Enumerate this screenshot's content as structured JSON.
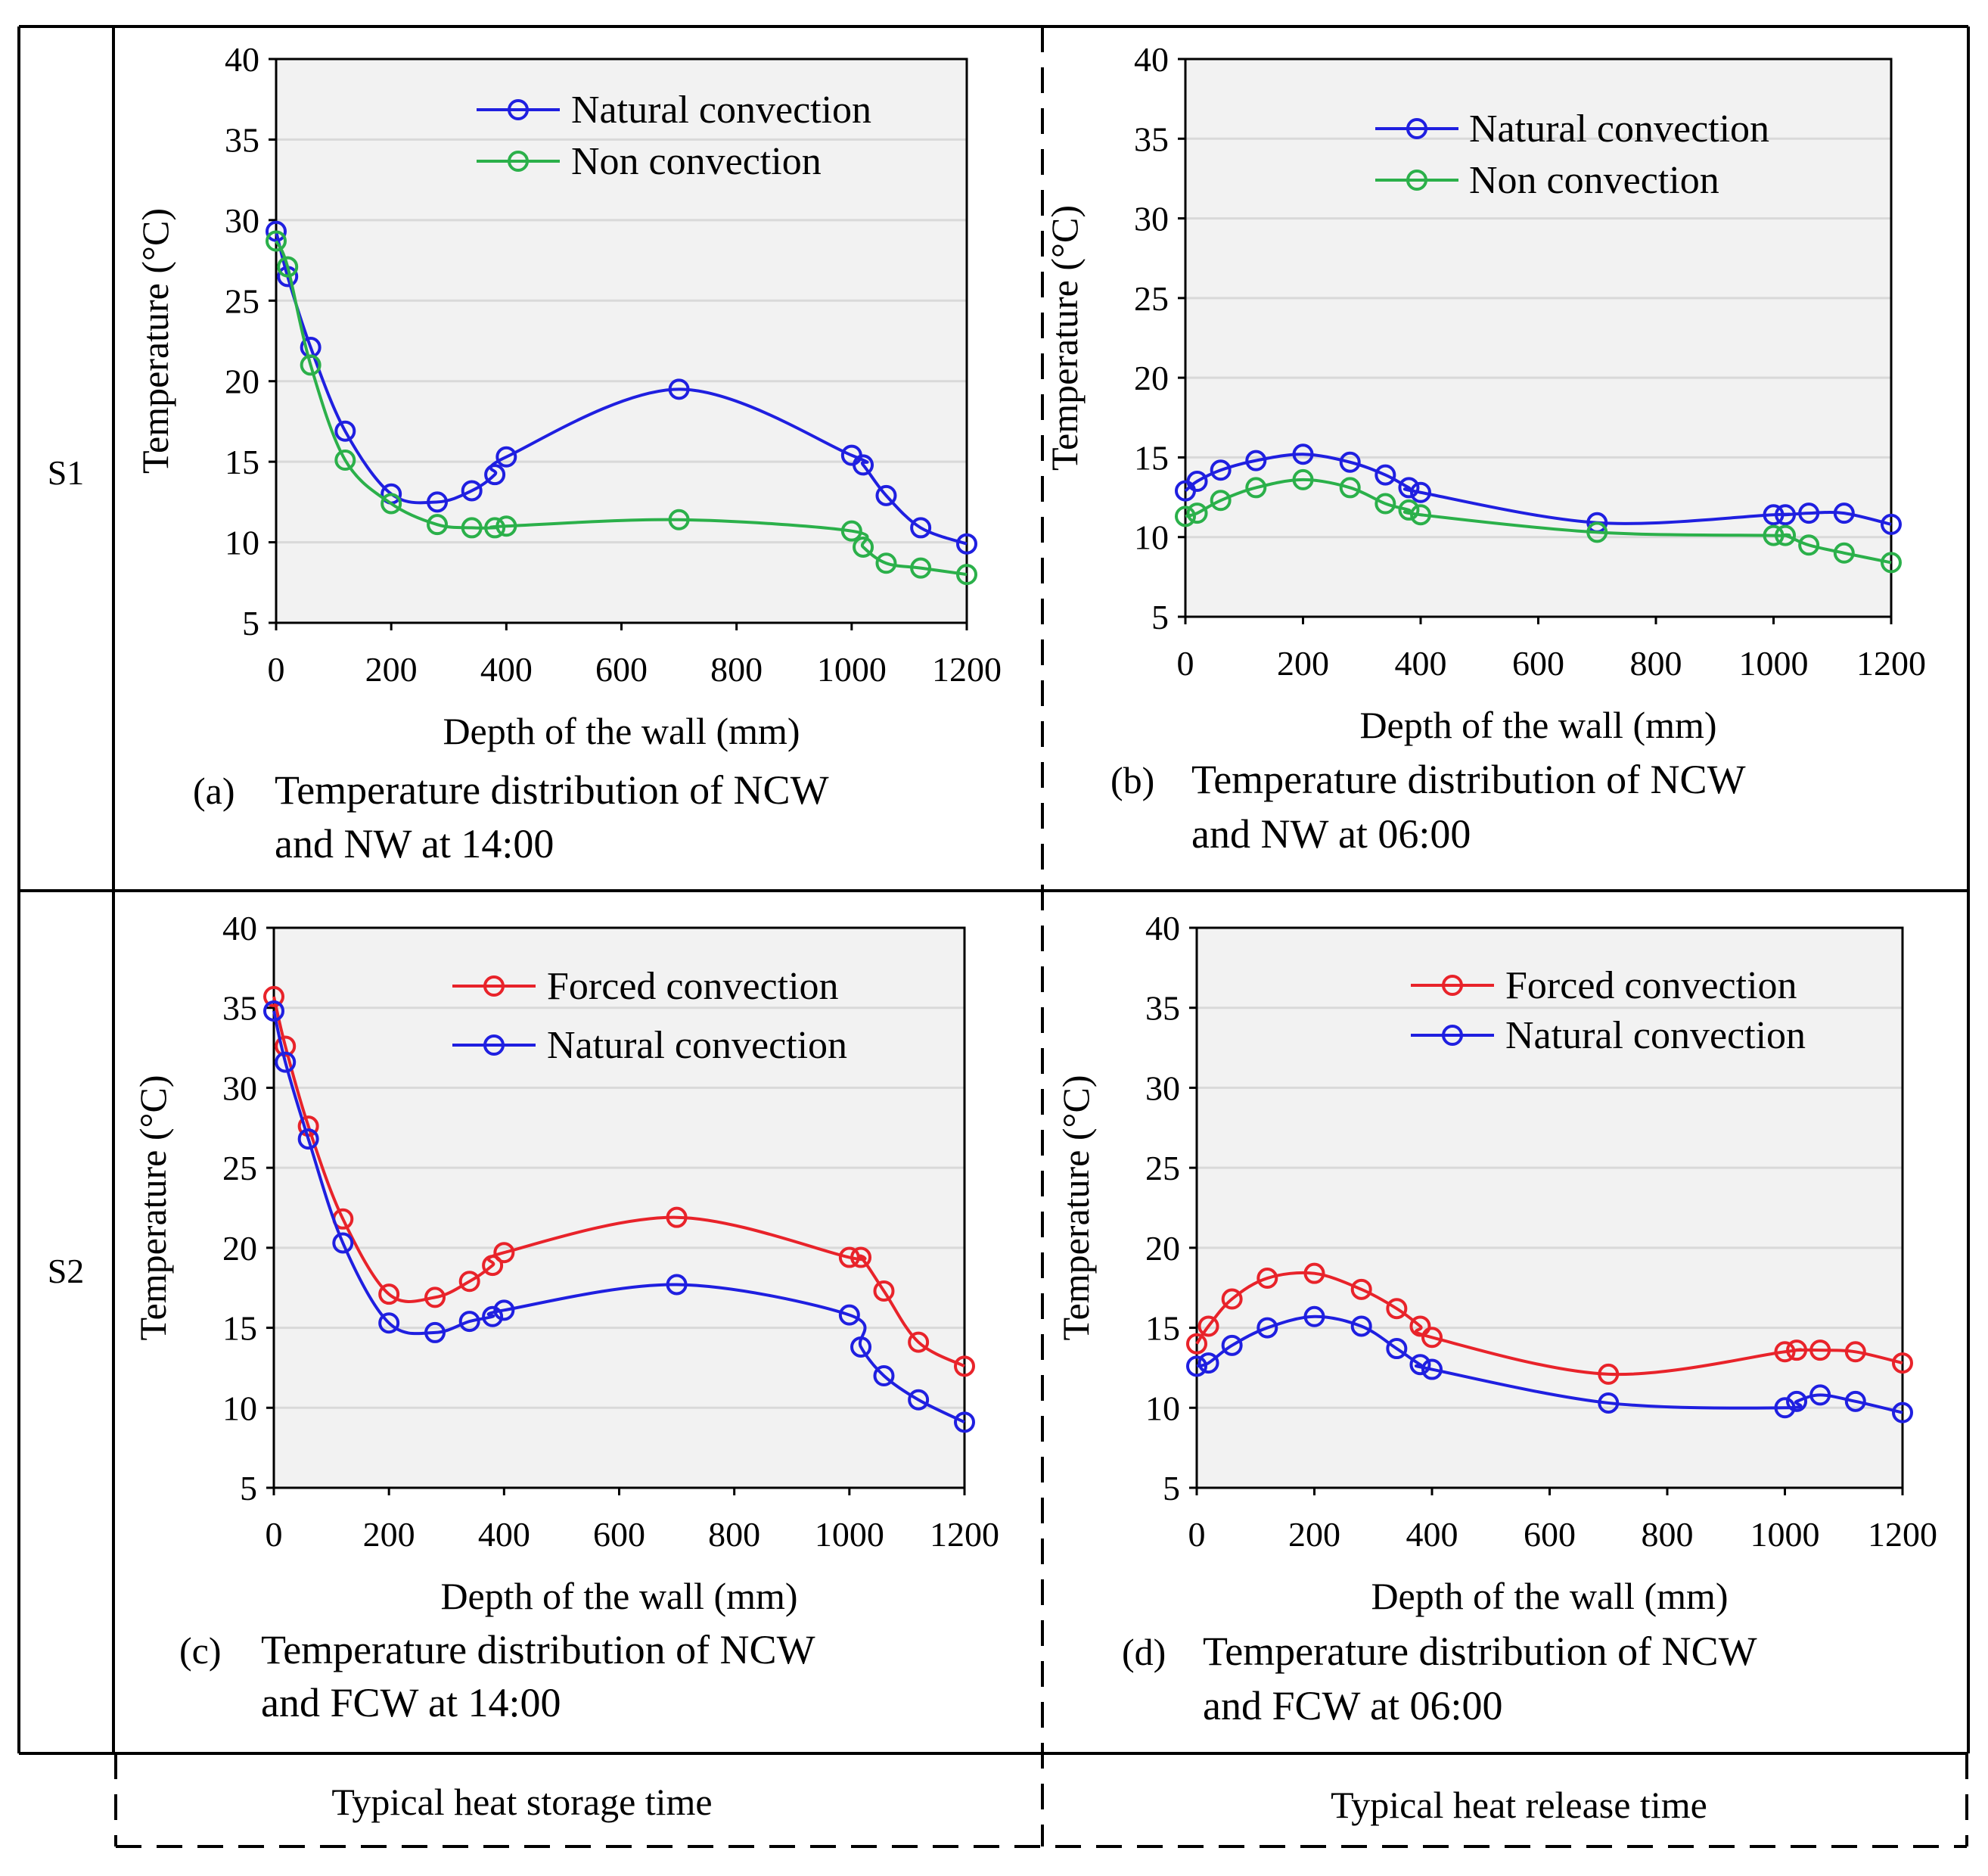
{
  "rows": [
    {
      "label": "S1"
    },
    {
      "label": "S2"
    }
  ],
  "columns": [
    {
      "label": "Typical heat storage time"
    },
    {
      "label": "Typical heat release time"
    }
  ],
  "colors": {
    "blue": "#1f1fe0",
    "green": "#2bb04a",
    "red": "#e8232a",
    "plot_bg": "#f2f2f2",
    "grid": "#d9d9d9"
  },
  "chart_data": [
    {
      "id": "a",
      "type": "line",
      "caption_letter": "(a)",
      "caption_line1": "Temperature distribution of NCW",
      "caption_line2": "and NW at 14:00",
      "xlabel": "Depth of the wall (mm)",
      "ylabel": "Temperature (°C)",
      "xlim": [
        0,
        1200
      ],
      "ylim": [
        5,
        40
      ],
      "xticks": [
        0,
        200,
        400,
        600,
        800,
        1000,
        1200
      ],
      "yticks": [
        5,
        10,
        15,
        20,
        25,
        30,
        35,
        40
      ],
      "legend_position": "top-right",
      "series": [
        {
          "name": "Natural convection",
          "color": "#1f1fe0",
          "x": [
            0,
            20,
            60,
            120,
            200,
            280,
            340,
            380,
            400,
            700,
            1000,
            1020,
            1060,
            1120,
            1200
          ],
          "y": [
            29.3,
            26.5,
            22.1,
            16.9,
            13.0,
            12.5,
            13.2,
            14.2,
            15.3,
            19.5,
            15.4,
            14.8,
            12.9,
            10.9,
            9.9
          ]
        },
        {
          "name": "Non convection",
          "color": "#2bb04a",
          "x": [
            0,
            20,
            60,
            120,
            200,
            280,
            340,
            380,
            400,
            700,
            1000,
            1020,
            1060,
            1120,
            1200
          ],
          "y": [
            28.7,
            27.1,
            21.0,
            15.1,
            12.4,
            11.1,
            10.9,
            10.9,
            11.0,
            11.4,
            10.7,
            9.7,
            8.7,
            8.4,
            8.0
          ]
        }
      ]
    },
    {
      "id": "b",
      "type": "line",
      "caption_letter": "(b)",
      "caption_line1": "Temperature distribution of NCW",
      "caption_line2": "and NW at 06:00",
      "xlabel": "Depth of the wall (mm)",
      "ylabel": "Temperature (°C)",
      "xlim": [
        0,
        1200
      ],
      "ylim": [
        5,
        40
      ],
      "xticks": [
        0,
        200,
        400,
        600,
        800,
        1000,
        1200
      ],
      "yticks": [
        5,
        10,
        15,
        20,
        25,
        30,
        35,
        40
      ],
      "legend_position": "top-right",
      "series": [
        {
          "name": "Natural convection",
          "color": "#1f1fe0",
          "x": [
            0,
            20,
            60,
            120,
            200,
            280,
            340,
            380,
            400,
            700,
            1000,
            1020,
            1060,
            1120,
            1200
          ],
          "y": [
            12.9,
            13.5,
            14.2,
            14.8,
            15.2,
            14.7,
            13.9,
            13.1,
            12.8,
            10.9,
            11.4,
            11.4,
            11.5,
            11.5,
            10.8
          ]
        },
        {
          "name": "Non convection",
          "color": "#2bb04a",
          "x": [
            0,
            20,
            60,
            120,
            200,
            280,
            340,
            380,
            400,
            700,
            1000,
            1020,
            1060,
            1120,
            1200
          ],
          "y": [
            11.3,
            11.5,
            12.3,
            13.1,
            13.6,
            13.1,
            12.1,
            11.7,
            11.4,
            10.3,
            10.1,
            10.1,
            9.5,
            9.0,
            8.4
          ]
        }
      ]
    },
    {
      "id": "c",
      "type": "line",
      "caption_letter": "(c)",
      "caption_line1": "Temperature distribution of NCW",
      "caption_line2": "and FCW at 14:00",
      "xlabel": "Depth of the wall (mm)",
      "ylabel": "Temperature (°C)",
      "xlim": [
        0,
        1200
      ],
      "ylim": [
        5,
        40
      ],
      "xticks": [
        0,
        200,
        400,
        600,
        800,
        1000,
        1200
      ],
      "yticks": [
        5,
        10,
        15,
        20,
        25,
        30,
        35,
        40
      ],
      "legend_position": "top-right",
      "series": [
        {
          "name": "Forced convection",
          "color": "#e8232a",
          "x": [
            0,
            20,
            60,
            120,
            200,
            280,
            340,
            380,
            400,
            700,
            1000,
            1020,
            1060,
            1120,
            1200
          ],
          "y": [
            35.7,
            32.6,
            27.6,
            21.8,
            17.1,
            16.9,
            17.9,
            18.9,
            19.7,
            21.9,
            19.4,
            19.4,
            17.3,
            14.1,
            12.6
          ]
        },
        {
          "name": "Natural convection",
          "color": "#1f1fe0",
          "x": [
            0,
            20,
            60,
            120,
            200,
            280,
            340,
            380,
            400,
            700,
            1000,
            1020,
            1060,
            1120,
            1200
          ],
          "y": [
            34.8,
            31.6,
            26.8,
            20.3,
            15.3,
            14.7,
            15.4,
            15.7,
            16.1,
            17.7,
            15.8,
            13.8,
            12.0,
            10.5,
            9.1
          ]
        }
      ]
    },
    {
      "id": "d",
      "type": "line",
      "caption_letter": "(d)",
      "caption_line1": "Temperature distribution of NCW",
      "caption_line2": "and FCW at 06:00",
      "xlabel": "Depth of the wall (mm)",
      "ylabel": "Temperature (°C)",
      "xlim": [
        0,
        1200
      ],
      "ylim": [
        5,
        40
      ],
      "xticks": [
        0,
        200,
        400,
        600,
        800,
        1000,
        1200
      ],
      "yticks": [
        5,
        10,
        15,
        20,
        25,
        30,
        35,
        40
      ],
      "legend_position": "top-right",
      "series": [
        {
          "name": "Forced convection",
          "color": "#e8232a",
          "x": [
            0,
            20,
            60,
            120,
            200,
            280,
            340,
            380,
            400,
            700,
            1000,
            1020,
            1060,
            1120,
            1200
          ],
          "y": [
            14.0,
            15.1,
            16.8,
            18.1,
            18.4,
            17.4,
            16.2,
            15.1,
            14.4,
            12.1,
            13.5,
            13.6,
            13.6,
            13.5,
            12.8
          ]
        },
        {
          "name": "Natural convection",
          "color": "#1f1fe0",
          "x": [
            0,
            20,
            60,
            120,
            200,
            280,
            340,
            380,
            400,
            700,
            1000,
            1020,
            1060,
            1120,
            1200
          ],
          "y": [
            12.6,
            12.8,
            13.9,
            15.0,
            15.7,
            15.1,
            13.7,
            12.7,
            12.4,
            10.3,
            10.0,
            10.4,
            10.8,
            10.4,
            9.7
          ]
        }
      ]
    }
  ]
}
